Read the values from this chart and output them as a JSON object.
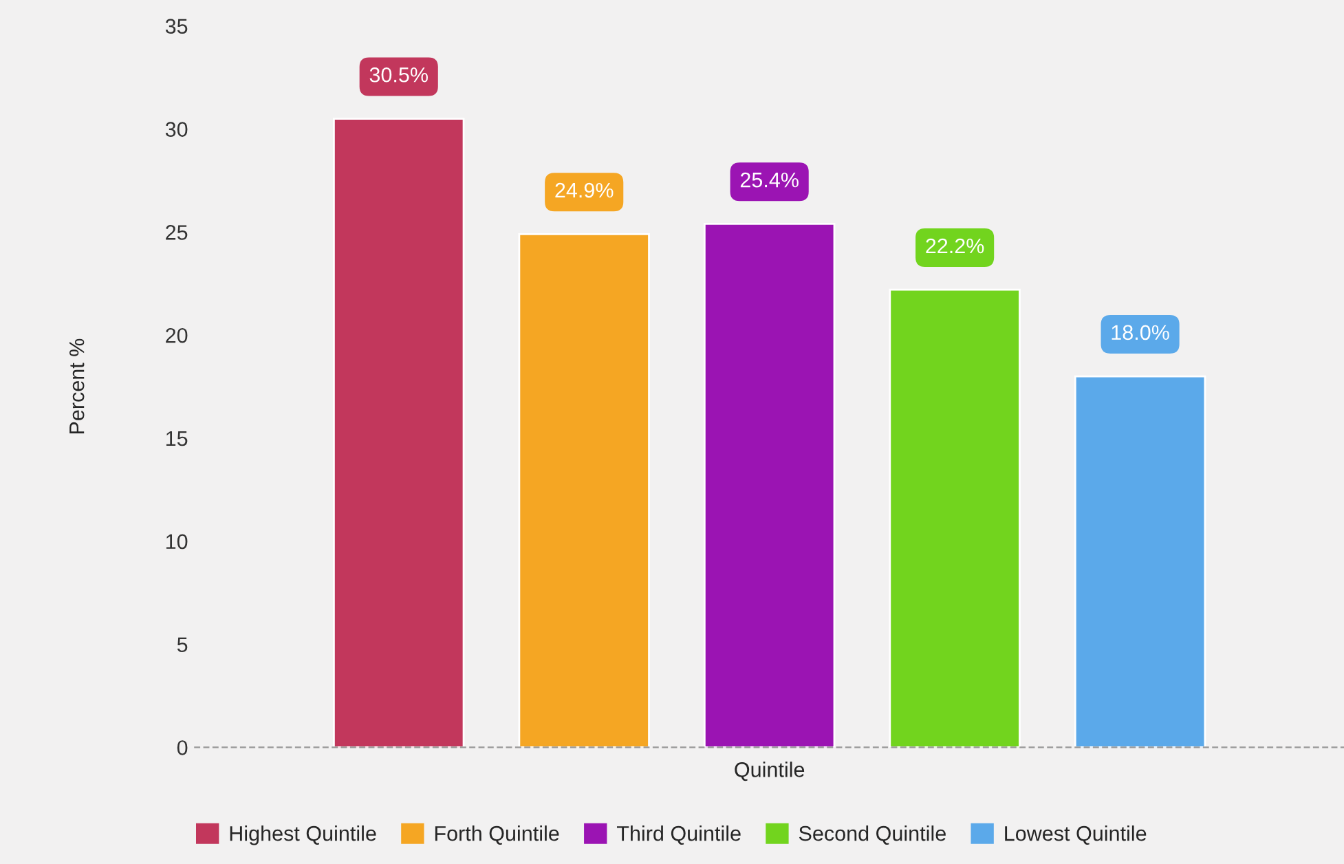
{
  "chart_data": {
    "type": "bar",
    "xlabel": "Quintile",
    "ylabel": "Percent %",
    "categories": [
      null,
      null,
      null,
      null,
      null
    ],
    "series": [
      {
        "name": "Highest Quintile",
        "color": "#c2375c",
        "values": [
          30.5,
          null,
          null,
          null,
          null
        ],
        "value_labels": [
          "30.5%",
          null,
          null,
          null,
          null
        ]
      },
      {
        "name": "Forth Quintile",
        "color": "#f5a623",
        "values": [
          null,
          24.9,
          null,
          null,
          null
        ],
        "value_labels": [
          null,
          "24.9%",
          null,
          null,
          null
        ]
      },
      {
        "name": "Third Quintile",
        "color": "#9b14b3",
        "values": [
          null,
          null,
          25.4,
          null,
          null
        ],
        "value_labels": [
          null,
          null,
          "25.4%",
          null,
          null
        ]
      },
      {
        "name": "Second Quintile",
        "color": "#72d41e",
        "values": [
          null,
          null,
          null,
          22.2,
          null
        ],
        "value_labels": [
          null,
          null,
          null,
          "22.2%",
          null
        ]
      },
      {
        "name": "Lowest Quintile",
        "color": "#5ba9ea",
        "values": [
          null,
          null,
          null,
          null,
          18.0
        ],
        "value_labels": [
          null,
          null,
          null,
          null,
          "18.0%"
        ]
      }
    ],
    "ylim": [
      0,
      35
    ],
    "yticks": [
      0,
      5,
      10,
      15,
      20,
      25,
      30,
      35
    ],
    "grid": false,
    "legend": "bottom"
  }
}
